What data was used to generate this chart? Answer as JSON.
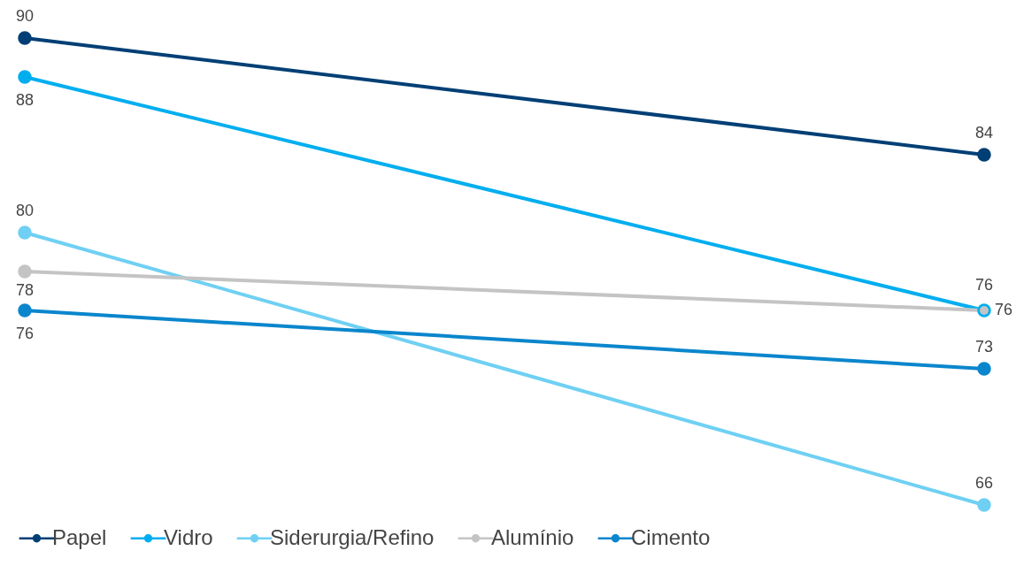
{
  "chart_data": {
    "type": "line",
    "categories": [
      null,
      null
    ],
    "series": [
      {
        "name": "Papel",
        "color": "#003f75",
        "values": [
          90,
          84
        ]
      },
      {
        "name": "Vidro",
        "color": "#00aeef",
        "values": [
          88,
          76
        ]
      },
      {
        "name": "Siderurgia/Refino",
        "color": "#6fd0f3",
        "values": [
          80,
          66
        ]
      },
      {
        "name": "Alumínio",
        "color": "#c4c4c4",
        "values": [
          78,
          76
        ]
      },
      {
        "name": "Cimento",
        "color": "#0a86cc",
        "values": [
          76,
          73
        ]
      }
    ],
    "data_labels": true,
    "marker": "circle",
    "line_style": "solid",
    "legend": "bottom",
    "grid": false
  }
}
